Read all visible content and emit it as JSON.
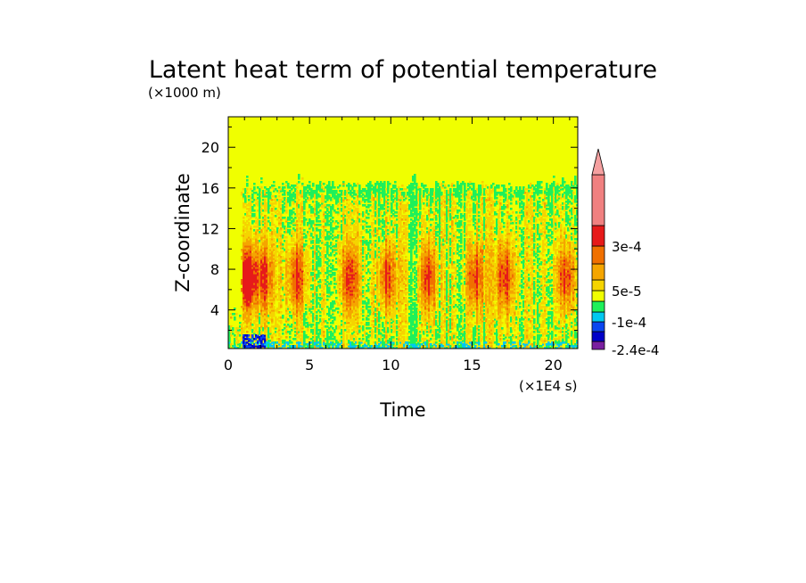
{
  "chart_data": {
    "type": "heatmap",
    "title": "Latent heat term of potential temperature",
    "xlabel": "Time",
    "ylabel": "Z-coordinate",
    "x_unit": "(×1E4 s)",
    "y_unit": "(×1000 m)",
    "xlim": [
      0,
      21.5
    ],
    "ylim": [
      0.2,
      23
    ],
    "x_ticks": [
      "0",
      "5",
      "10",
      "15",
      "20"
    ],
    "y_ticks": [
      "4",
      "8",
      "12",
      "16",
      "20"
    ],
    "x_tick_values": [
      0,
      5,
      10,
      15,
      20
    ],
    "y_tick_values": [
      4,
      8,
      12,
      16,
      20
    ],
    "grid": false,
    "background_value_color": "#f0ff00",
    "colorbar": {
      "placement": "right",
      "extend_top": true,
      "colors": [
        "#7a1fa0",
        "#0000c8",
        "#0a46f0",
        "#00c8f0",
        "#1ef05a",
        "#f0ff00",
        "#f5d400",
        "#f5a500",
        "#f07000",
        "#e61a1a",
        "#f08080"
      ],
      "labels": [
        "-2.4e-4",
        "-1e-4",
        "5e-5",
        "3e-4"
      ],
      "arrow_color": "#f5a0a0"
    },
    "active_layer_top_km": 16.3,
    "heating_bands_x": [
      1.2,
      2.2,
      4.2,
      7.5,
      9.8,
      12.3,
      15.2,
      17.0,
      20.8
    ],
    "strongest_heating": {
      "x": 1.2,
      "z": 7.0
    }
  }
}
